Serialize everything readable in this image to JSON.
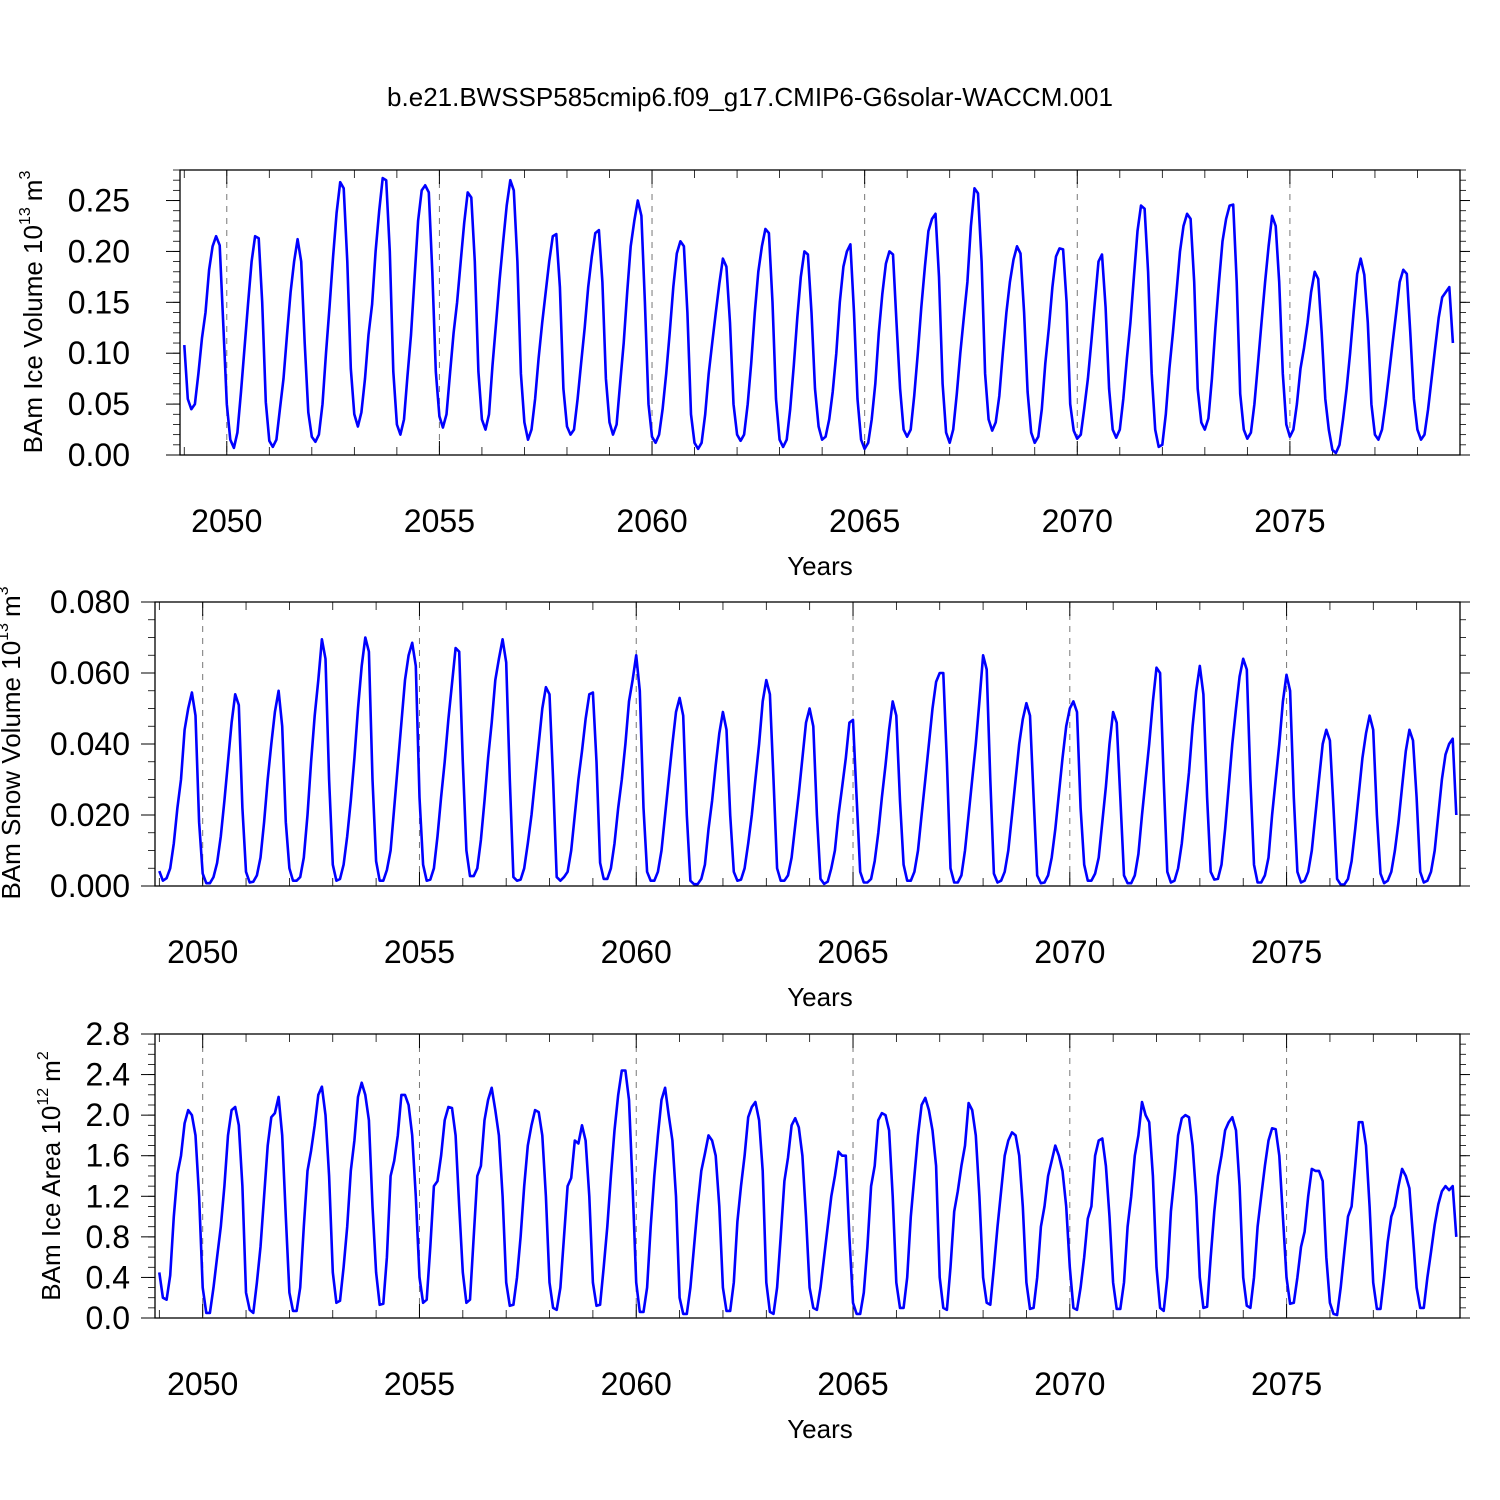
{
  "title": "b.e21.BWSSP585cmip6.f09_g17.CMIP6-G6solar-WACCM.001",
  "series_color": "#0000ff",
  "chart_data": [
    {
      "type": "line",
      "xlabel": "Years",
      "ylabel": "BAm Ice Volume 10",
      "ylabel_exp": "13",
      "ylabel_unit": "m",
      "ylabel_unit_exp": "3",
      "xlim": [
        2048.9,
        2079.0
      ],
      "ylim": [
        0,
        0.28
      ],
      "xticks": [
        2050,
        2055,
        2060,
        2065,
        2070,
        2075
      ],
      "xtick_labels": [
        "2050",
        "2055",
        "2060",
        "2065",
        "2070",
        "2075"
      ],
      "yticks": [
        0.0,
        0.05,
        0.1,
        0.15,
        0.2,
        0.25
      ],
      "ytick_labels": [
        "0.00",
        "0.05",
        "0.10",
        "0.15",
        "0.20",
        "0.25"
      ],
      "x_start": 2049.0,
      "x_step": 0.08333,
      "values": [
        0.108,
        0.055,
        0.045,
        0.05,
        0.08,
        0.115,
        0.14,
        0.182,
        0.205,
        0.215,
        0.206,
        0.13,
        0.05,
        0.015,
        0.007,
        0.022,
        0.062,
        0.105,
        0.148,
        0.19,
        0.215,
        0.213,
        0.15,
        0.052,
        0.014,
        0.008,
        0.015,
        0.045,
        0.075,
        0.118,
        0.16,
        0.19,
        0.212,
        0.19,
        0.11,
        0.042,
        0.018,
        0.013,
        0.02,
        0.05,
        0.1,
        0.145,
        0.195,
        0.238,
        0.268,
        0.262,
        0.19,
        0.085,
        0.04,
        0.028,
        0.042,
        0.075,
        0.118,
        0.148,
        0.2,
        0.24,
        0.272,
        0.27,
        0.2,
        0.082,
        0.03,
        0.02,
        0.035,
        0.078,
        0.118,
        0.175,
        0.23,
        0.26,
        0.265,
        0.258,
        0.18,
        0.082,
        0.038,
        0.027,
        0.04,
        0.08,
        0.12,
        0.15,
        0.19,
        0.228,
        0.258,
        0.253,
        0.19,
        0.082,
        0.035,
        0.025,
        0.04,
        0.088,
        0.13,
        0.172,
        0.21,
        0.245,
        0.27,
        0.26,
        0.19,
        0.08,
        0.032,
        0.015,
        0.025,
        0.055,
        0.095,
        0.13,
        0.16,
        0.19,
        0.215,
        0.217,
        0.165,
        0.065,
        0.028,
        0.02,
        0.025,
        0.055,
        0.09,
        0.125,
        0.165,
        0.195,
        0.218,
        0.221,
        0.17,
        0.075,
        0.032,
        0.02,
        0.03,
        0.07,
        0.11,
        0.16,
        0.205,
        0.23,
        0.25,
        0.235,
        0.15,
        0.05,
        0.018,
        0.012,
        0.02,
        0.045,
        0.08,
        0.12,
        0.165,
        0.198,
        0.21,
        0.205,
        0.14,
        0.04,
        0.012,
        0.006,
        0.012,
        0.04,
        0.08,
        0.11,
        0.14,
        0.168,
        0.193,
        0.185,
        0.13,
        0.05,
        0.02,
        0.014,
        0.02,
        0.05,
        0.09,
        0.14,
        0.18,
        0.205,
        0.222,
        0.218,
        0.15,
        0.055,
        0.015,
        0.008,
        0.015,
        0.045,
        0.088,
        0.135,
        0.175,
        0.2,
        0.197,
        0.14,
        0.065,
        0.028,
        0.015,
        0.018,
        0.035,
        0.062,
        0.1,
        0.15,
        0.185,
        0.2,
        0.207,
        0.14,
        0.055,
        0.015,
        0.006,
        0.012,
        0.035,
        0.07,
        0.12,
        0.158,
        0.188,
        0.2,
        0.197,
        0.13,
        0.065,
        0.025,
        0.018,
        0.025,
        0.058,
        0.1,
        0.145,
        0.185,
        0.22,
        0.232,
        0.237,
        0.175,
        0.07,
        0.022,
        0.012,
        0.025,
        0.06,
        0.1,
        0.135,
        0.17,
        0.225,
        0.262,
        0.257,
        0.19,
        0.08,
        0.035,
        0.024,
        0.032,
        0.058,
        0.1,
        0.14,
        0.17,
        0.192,
        0.205,
        0.198,
        0.14,
        0.062,
        0.022,
        0.012,
        0.018,
        0.045,
        0.09,
        0.125,
        0.165,
        0.195,
        0.203,
        0.202,
        0.15,
        0.05,
        0.024,
        0.016,
        0.02,
        0.046,
        0.075,
        0.112,
        0.152,
        0.19,
        0.197,
        0.145,
        0.065,
        0.025,
        0.017,
        0.025,
        0.055,
        0.095,
        0.13,
        0.175,
        0.22,
        0.245,
        0.242,
        0.18,
        0.08,
        0.025,
        0.008,
        0.01,
        0.04,
        0.085,
        0.12,
        0.16,
        0.2,
        0.225,
        0.237,
        0.232,
        0.17,
        0.065,
        0.032,
        0.025,
        0.036,
        0.075,
        0.125,
        0.17,
        0.21,
        0.232,
        0.245,
        0.246,
        0.17,
        0.06,
        0.025,
        0.016,
        0.022,
        0.05,
        0.09,
        0.13,
        0.17,
        0.205,
        0.235,
        0.225,
        0.17,
        0.08,
        0.03,
        0.018,
        0.025,
        0.05,
        0.085,
        0.105,
        0.13,
        0.16,
        0.18,
        0.173,
        0.12,
        0.055,
        0.025,
        0.005,
        0.002,
        0.01,
        0.035,
        0.065,
        0.1,
        0.14,
        0.178,
        0.193,
        0.177,
        0.13,
        0.05,
        0.02,
        0.015,
        0.025,
        0.05,
        0.08,
        0.11,
        0.14,
        0.17,
        0.182,
        0.178,
        0.12,
        0.055,
        0.025,
        0.015,
        0.02,
        0.045,
        0.075,
        0.105,
        0.135,
        0.155,
        0.16,
        0.165,
        0.11
      ]
    },
    {
      "type": "line",
      "xlabel": "Years",
      "ylabel": "BAm Snow Volume 10",
      "ylabel_exp": "13",
      "ylabel_unit": "m",
      "ylabel_unit_exp": "3",
      "xlim": [
        2048.9,
        2079.0
      ],
      "ylim": [
        0,
        0.08
      ],
      "xticks": [
        2050,
        2055,
        2060,
        2065,
        2070,
        2075
      ],
      "xtick_labels": [
        "2050",
        "2055",
        "2060",
        "2065",
        "2070",
        "2075"
      ],
      "yticks": [
        0.0,
        0.02,
        0.04,
        0.06,
        0.08
      ],
      "ytick_labels": [
        "0.000",
        "0.020",
        "0.040",
        "0.060",
        "0.080"
      ],
      "x_start": 2049.0,
      "x_step": 0.08333,
      "values": [
        0.0042,
        0.0015,
        0.0022,
        0.005,
        0.012,
        0.022,
        0.03,
        0.044,
        0.05,
        0.0545,
        0.048,
        0.018,
        0.0035,
        0.0008,
        0.0008,
        0.0025,
        0.0065,
        0.014,
        0.024,
        0.035,
        0.046,
        0.054,
        0.051,
        0.022,
        0.004,
        0.001,
        0.0012,
        0.003,
        0.008,
        0.018,
        0.03,
        0.04,
        0.049,
        0.055,
        0.045,
        0.018,
        0.005,
        0.0015,
        0.0015,
        0.0025,
        0.008,
        0.02,
        0.035,
        0.048,
        0.058,
        0.0695,
        0.064,
        0.03,
        0.006,
        0.0015,
        0.002,
        0.006,
        0.014,
        0.024,
        0.036,
        0.05,
        0.062,
        0.07,
        0.066,
        0.03,
        0.007,
        0.0015,
        0.0015,
        0.0045,
        0.01,
        0.022,
        0.034,
        0.046,
        0.058,
        0.065,
        0.0685,
        0.062,
        0.025,
        0.006,
        0.0015,
        0.0018,
        0.005,
        0.014,
        0.025,
        0.035,
        0.047,
        0.057,
        0.067,
        0.066,
        0.035,
        0.01,
        0.0028,
        0.0028,
        0.005,
        0.013,
        0.024,
        0.036,
        0.046,
        0.058,
        0.064,
        0.0695,
        0.063,
        0.03,
        0.0025,
        0.0015,
        0.0018,
        0.005,
        0.012,
        0.02,
        0.03,
        0.04,
        0.05,
        0.056,
        0.054,
        0.03,
        0.0025,
        0.0015,
        0.0025,
        0.004,
        0.01,
        0.02,
        0.03,
        0.038,
        0.047,
        0.054,
        0.0545,
        0.035,
        0.0065,
        0.002,
        0.002,
        0.005,
        0.012,
        0.022,
        0.03,
        0.04,
        0.052,
        0.058,
        0.065,
        0.055,
        0.022,
        0.004,
        0.0015,
        0.0015,
        0.004,
        0.01,
        0.02,
        0.03,
        0.04,
        0.049,
        0.053,
        0.048,
        0.02,
        0.0015,
        0.0005,
        0.0005,
        0.002,
        0.006,
        0.016,
        0.024,
        0.034,
        0.043,
        0.049,
        0.044,
        0.02,
        0.004,
        0.0015,
        0.0018,
        0.005,
        0.012,
        0.02,
        0.03,
        0.04,
        0.052,
        0.058,
        0.054,
        0.03,
        0.005,
        0.0015,
        0.0015,
        0.003,
        0.008,
        0.017,
        0.026,
        0.036,
        0.046,
        0.05,
        0.045,
        0.02,
        0.002,
        0.0006,
        0.0012,
        0.005,
        0.01,
        0.02,
        0.028,
        0.036,
        0.046,
        0.0468,
        0.025,
        0.004,
        0.001,
        0.001,
        0.002,
        0.007,
        0.015,
        0.025,
        0.034,
        0.044,
        0.052,
        0.048,
        0.024,
        0.006,
        0.0015,
        0.0015,
        0.004,
        0.01,
        0.02,
        0.03,
        0.04,
        0.05,
        0.0575,
        0.06,
        0.06,
        0.035,
        0.005,
        0.001,
        0.001,
        0.003,
        0.01,
        0.02,
        0.03,
        0.04,
        0.052,
        0.065,
        0.061,
        0.03,
        0.0035,
        0.001,
        0.0015,
        0.004,
        0.01,
        0.02,
        0.03,
        0.04,
        0.047,
        0.0515,
        0.048,
        0.025,
        0.003,
        0.0008,
        0.001,
        0.003,
        0.008,
        0.016,
        0.026,
        0.036,
        0.045,
        0.05,
        0.052,
        0.049,
        0.022,
        0.006,
        0.0015,
        0.0015,
        0.0035,
        0.008,
        0.018,
        0.028,
        0.04,
        0.049,
        0.046,
        0.025,
        0.003,
        0.0008,
        0.0008,
        0.003,
        0.009,
        0.02,
        0.03,
        0.04,
        0.052,
        0.0615,
        0.06,
        0.03,
        0.004,
        0.001,
        0.0015,
        0.005,
        0.012,
        0.022,
        0.032,
        0.045,
        0.055,
        0.062,
        0.054,
        0.025,
        0.004,
        0.0018,
        0.002,
        0.006,
        0.016,
        0.028,
        0.04,
        0.05,
        0.059,
        0.064,
        0.061,
        0.03,
        0.006,
        0.001,
        0.001,
        0.003,
        0.008,
        0.02,
        0.03,
        0.04,
        0.052,
        0.0595,
        0.055,
        0.025,
        0.004,
        0.001,
        0.0015,
        0.004,
        0.01,
        0.02,
        0.03,
        0.04,
        0.044,
        0.041,
        0.022,
        0.002,
        0.0004,
        0.0004,
        0.002,
        0.007,
        0.016,
        0.026,
        0.036,
        0.043,
        0.048,
        0.044,
        0.02,
        0.0035,
        0.0008,
        0.0015,
        0.004,
        0.01,
        0.018,
        0.028,
        0.038,
        0.044,
        0.041,
        0.025,
        0.004,
        0.001,
        0.0015,
        0.004,
        0.01,
        0.02,
        0.03,
        0.037,
        0.04,
        0.0415,
        0.02
      ]
    },
    {
      "type": "line",
      "xlabel": "Years",
      "ylabel": "BAm Ice Area 10",
      "ylabel_exp": "12",
      "ylabel_unit": "m",
      "ylabel_unit_exp": "2",
      "xlim": [
        2048.9,
        2079.0
      ],
      "ylim": [
        0,
        2.8
      ],
      "xticks": [
        2050,
        2055,
        2060,
        2065,
        2070,
        2075
      ],
      "xtick_labels": [
        "2050",
        "2055",
        "2060",
        "2065",
        "2070",
        "2075"
      ],
      "yticks": [
        0.0,
        0.4,
        0.8,
        1.2,
        1.6,
        2.0,
        2.4,
        2.8
      ],
      "ytick_labels": [
        "0.0",
        "0.4",
        "0.8",
        "1.2",
        "1.6",
        "2.0",
        "2.4",
        "2.8"
      ],
      "x_start": 2049.0,
      "x_step": 0.08333,
      "values": [
        0.45,
        0.2,
        0.18,
        0.42,
        1.0,
        1.42,
        1.6,
        1.92,
        2.05,
        2.0,
        1.8,
        1.2,
        0.3,
        0.05,
        0.05,
        0.3,
        0.6,
        0.9,
        1.3,
        1.8,
        2.05,
        2.08,
        1.9,
        1.3,
        0.25,
        0.08,
        0.05,
        0.35,
        0.7,
        1.2,
        1.7,
        1.98,
        2.02,
        2.18,
        1.8,
        1.0,
        0.25,
        0.07,
        0.07,
        0.3,
        0.9,
        1.45,
        1.65,
        1.9,
        2.2,
        2.28,
        2.0,
        1.4,
        0.45,
        0.15,
        0.17,
        0.5,
        0.9,
        1.45,
        1.75,
        2.18,
        2.32,
        2.2,
        1.95,
        1.1,
        0.45,
        0.13,
        0.14,
        0.6,
        1.4,
        1.55,
        1.8,
        2.2,
        2.2,
        2.1,
        1.8,
        1.2,
        0.4,
        0.15,
        0.18,
        0.7,
        1.3,
        1.35,
        1.6,
        1.95,
        2.08,
        2.07,
        1.8,
        1.1,
        0.45,
        0.15,
        0.18,
        0.8,
        1.4,
        1.5,
        1.95,
        2.15,
        2.27,
        2.05,
        1.8,
        1.2,
        0.35,
        0.12,
        0.13,
        0.4,
        0.8,
        1.3,
        1.7,
        1.9,
        2.05,
        2.03,
        1.8,
        1.2,
        0.35,
        0.1,
        0.08,
        0.3,
        0.8,
        1.3,
        1.38,
        1.75,
        1.72,
        1.9,
        1.75,
        1.2,
        0.35,
        0.12,
        0.13,
        0.5,
        0.9,
        1.4,
        1.85,
        2.2,
        2.44,
        2.44,
        2.15,
        1.3,
        0.35,
        0.06,
        0.06,
        0.3,
        0.9,
        1.4,
        1.8,
        2.15,
        2.27,
        2.0,
        1.75,
        1.2,
        0.2,
        0.04,
        0.04,
        0.3,
        0.7,
        1.1,
        1.45,
        1.62,
        1.8,
        1.75,
        1.6,
        1.1,
        0.3,
        0.07,
        0.07,
        0.35,
        0.95,
        1.3,
        1.6,
        1.98,
        2.08,
        2.13,
        1.95,
        1.45,
        0.35,
        0.06,
        0.04,
        0.3,
        0.8,
        1.35,
        1.58,
        1.9,
        1.97,
        1.88,
        1.6,
        1.0,
        0.3,
        0.1,
        0.08,
        0.3,
        0.6,
        0.9,
        1.2,
        1.4,
        1.64,
        1.6,
        1.6,
        0.8,
        0.15,
        0.04,
        0.04,
        0.25,
        0.7,
        1.3,
        1.5,
        1.95,
        2.02,
        2.0,
        1.85,
        1.2,
        0.35,
        0.1,
        0.1,
        0.4,
        1.0,
        1.4,
        1.8,
        2.1,
        2.17,
        2.05,
        1.85,
        1.5,
        0.4,
        0.1,
        0.08,
        0.5,
        1.05,
        1.25,
        1.5,
        1.7,
        2.12,
        2.05,
        1.8,
        1.2,
        0.4,
        0.15,
        0.13,
        0.5,
        0.9,
        1.25,
        1.6,
        1.75,
        1.83,
        1.8,
        1.6,
        1.1,
        0.35,
        0.09,
        0.1,
        0.4,
        0.9,
        1.1,
        1.4,
        1.55,
        1.7,
        1.6,
        1.45,
        1.1,
        0.5,
        0.1,
        0.08,
        0.3,
        0.6,
        0.98,
        1.1,
        1.6,
        1.75,
        1.77,
        1.5,
        1.0,
        0.35,
        0.09,
        0.09,
        0.35,
        0.9,
        1.2,
        1.6,
        1.8,
        2.13,
        2.0,
        1.93,
        1.4,
        0.5,
        0.1,
        0.07,
        0.4,
        1.05,
        1.4,
        1.8,
        1.97,
        2.0,
        1.98,
        1.7,
        1.2,
        0.4,
        0.1,
        0.11,
        0.6,
        1.05,
        1.4,
        1.6,
        1.85,
        1.93,
        1.98,
        1.85,
        1.3,
        0.4,
        0.12,
        0.1,
        0.4,
        0.9,
        1.2,
        1.5,
        1.75,
        1.87,
        1.86,
        1.6,
        1.0,
        0.4,
        0.14,
        0.15,
        0.4,
        0.7,
        0.85,
        1.2,
        1.47,
        1.45,
        1.45,
        1.35,
        0.6,
        0.15,
        0.04,
        0.03,
        0.3,
        0.65,
        1.0,
        1.1,
        1.5,
        1.93,
        1.93,
        1.7,
        1.1,
        0.35,
        0.09,
        0.09,
        0.4,
        0.75,
        1.0,
        1.1,
        1.3,
        1.47,
        1.4,
        1.28,
        0.8,
        0.3,
        0.1,
        0.1,
        0.4,
        0.65,
        0.92,
        1.12,
        1.25,
        1.3,
        1.26,
        1.3,
        0.8
      ]
    }
  ]
}
